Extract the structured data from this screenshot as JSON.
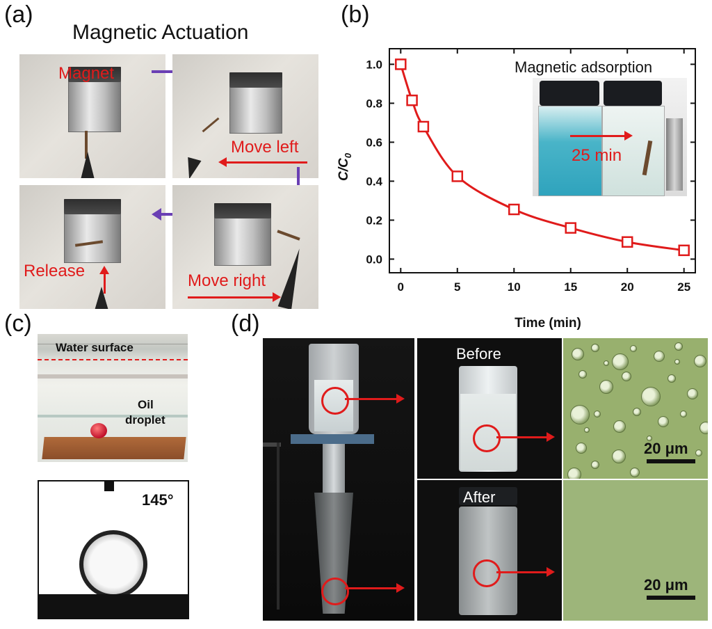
{
  "panel_a": {
    "label": "(a)",
    "title": "Magnetic Actuation",
    "magnet_label": "Magnet",
    "move_left": "Move left",
    "release": "Release",
    "move_right": "Move right"
  },
  "panel_b": {
    "label": "(b)",
    "inset_title": "Magnetic adsorption",
    "inset_time": "25 min"
  },
  "panel_c": {
    "label": "(c)",
    "water_surface": "Water surface",
    "oil_line1": "Oil",
    "oil_line2": "droplet",
    "angle": "145°"
  },
  "panel_d": {
    "label": "(d)",
    "before": "Before",
    "after": "After",
    "scale_top": "20 μm",
    "scale_bottom": "20 μm"
  },
  "chart_data": {
    "type": "line",
    "title": "",
    "xlabel": "Time (min)",
    "ylabel": "C/C0",
    "ylabel_main": "C/C",
    "ylabel_sub": "0",
    "x": [
      0,
      1,
      2,
      5,
      10,
      15,
      20,
      25
    ],
    "series": [
      {
        "values": [
          1.0,
          0.815,
          0.68,
          0.425,
          0.255,
          0.16,
          0.088,
          0.045
        ],
        "color": "#e01b1b",
        "marker": "open-square"
      }
    ],
    "xlim": [
      -1,
      26
    ],
    "ylim": [
      -0.07,
      1.08
    ],
    "xticks": [
      "0",
      "5",
      "10",
      "15",
      "20",
      "25"
    ],
    "yticks": [
      "0.0",
      "0.2",
      "0.4",
      "0.6",
      "0.8",
      "1.0"
    ],
    "grid": false
  }
}
